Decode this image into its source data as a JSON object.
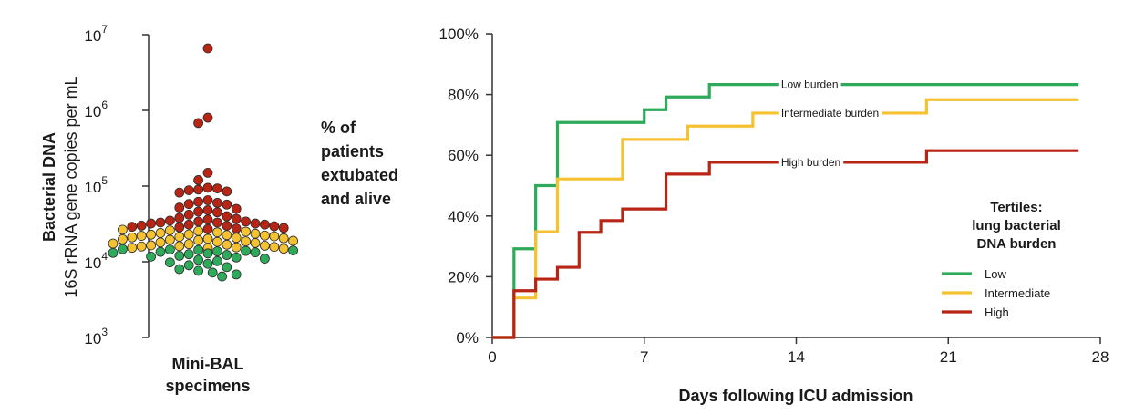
{
  "colors": {
    "low": "#2eab5a",
    "intermediate": "#f5c232",
    "high": "#b82514",
    "axis": "#333333"
  },
  "chart_data": [
    {
      "type": "scatter",
      "ylabel_line1": "Bacterial DNA",
      "ylabel_line2": "16S rRNA gene copies per mL",
      "yscale": "log",
      "ylim": [
        1000,
        10000000
      ],
      "yticks": [
        {
          "value": 1000,
          "base": "10",
          "exp": "3"
        },
        {
          "value": 10000,
          "base": "10",
          "exp": "4"
        },
        {
          "value": 100000,
          "base": "10",
          "exp": "5"
        },
        {
          "value": 1000000,
          "base": "10",
          "exp": "6"
        },
        {
          "value": 10000000,
          "base": "10",
          "exp": "7"
        }
      ],
      "xlabel_line1": "Mini-BAL",
      "xlabel_line2": "specimens",
      "groups": [
        {
          "tertile": "High",
          "color_key": "high",
          "values": [
            6600000,
            800000,
            680000,
            150000,
            120000,
            95000,
            93000,
            90000,
            88000,
            85000,
            82000,
            65000,
            62000,
            60000,
            58000,
            57000,
            52000,
            50000,
            48000,
            46000,
            45000,
            42000,
            40000,
            38000,
            37000,
            36000,
            35000,
            34000,
            34000,
            33000,
            33000,
            32000,
            32000,
            31000,
            31000,
            30000,
            30000,
            29500,
            29000,
            28500,
            28000,
            27500,
            27000
          ]
        },
        {
          "tertile": "Intermediate",
          "color_key": "intermediate",
          "values": [
            26500,
            26000,
            25500,
            25000,
            24500,
            24000,
            23500,
            23000,
            22800,
            22500,
            22200,
            22000,
            21700,
            21400,
            21000,
            20700,
            20400,
            20100,
            19800,
            19500,
            19200,
            18900,
            18600,
            18300,
            18000,
            17700,
            17400,
            17100,
            16800,
            16500,
            16300,
            16100,
            15900,
            15700,
            15500,
            15300,
            15100,
            14900
          ]
        },
        {
          "tertile": "Low",
          "color_key": "low",
          "values": [
            14700,
            14500,
            14300,
            14100,
            13900,
            13700,
            13500,
            13300,
            13100,
            12900,
            12600,
            12300,
            12000,
            11700,
            11400,
            11000,
            10600,
            10200,
            9800,
            9400,
            9000,
            8500,
            8000,
            7600,
            7200,
            6800,
            6400
          ]
        }
      ]
    },
    {
      "type": "line",
      "step": "post",
      "ylabel_lines": [
        "% of",
        "patients",
        "extubated",
        "and alive"
      ],
      "xlabel": "Days following ICU admission",
      "xlim": [
        0,
        28
      ],
      "ylim": [
        0,
        100
      ],
      "xticks": [
        0,
        7,
        14,
        21,
        28
      ],
      "yticks": [
        0,
        20,
        40,
        60,
        80,
        100
      ],
      "ytick_labels": [
        "0%",
        "20%",
        "40%",
        "60%",
        "80%",
        "100%"
      ],
      "series": [
        {
          "name": "Low burden",
          "color_key": "low",
          "x": [
            0,
            1,
            2,
            3,
            7,
            8,
            10,
            27
          ],
          "y": [
            0,
            29.2,
            50,
            70.8,
            75,
            79.2,
            83.3,
            83.3
          ]
        },
        {
          "name": "Intermediate burden",
          "color_key": "intermediate",
          "x": [
            0,
            1,
            2,
            3,
            6,
            9,
            12,
            20,
            27
          ],
          "y": [
            0,
            13,
            34.8,
            52.2,
            65.2,
            69.6,
            73.9,
            78.3,
            78.3
          ]
        },
        {
          "name": "High burden",
          "color_key": "high",
          "x": [
            0,
            1,
            2,
            3,
            4,
            5,
            6,
            8,
            10,
            20,
            27
          ],
          "y": [
            0,
            15.4,
            19.2,
            23.1,
            34.6,
            38.5,
            42.3,
            53.8,
            57.7,
            61.5,
            61.5
          ]
        }
      ],
      "legend": {
        "title_lines": [
          "Tertiles:",
          "lung bacterial",
          "DNA burden"
        ],
        "items": [
          {
            "label": "Low",
            "color_key": "low"
          },
          {
            "label": "Intermediate",
            "color_key": "intermediate"
          },
          {
            "label": "High",
            "color_key": "high"
          }
        ],
        "position": "right"
      }
    }
  ]
}
